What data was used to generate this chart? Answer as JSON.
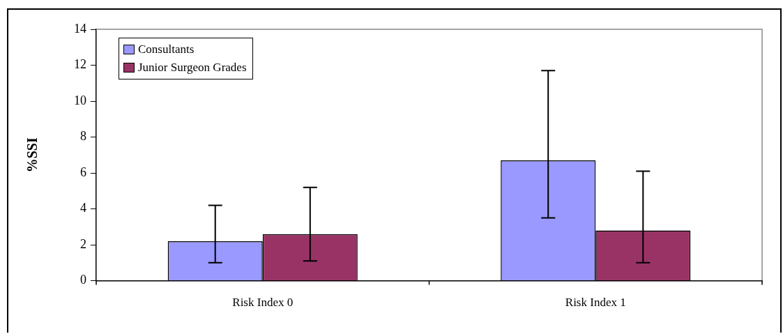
{
  "chart_data": {
    "type": "bar",
    "ylabel": "%SSI",
    "categories": [
      "Risk Index 0",
      "Risk Index 1"
    ],
    "series": [
      {
        "name": "Consultants",
        "color": "#9999ff",
        "values": [
          2.2,
          6.7
        ],
        "errors": [
          [
            1.0,
            4.2
          ],
          [
            3.5,
            11.7
          ]
        ]
      },
      {
        "name": "Junior Surgeon Grades",
        "color": "#993366",
        "values": [
          2.6,
          2.8
        ],
        "errors": [
          [
            1.1,
            5.2
          ],
          [
            1.0,
            6.1
          ]
        ]
      }
    ],
    "ylim": [
      0,
      14
    ],
    "yticks": [
      0,
      2,
      4,
      6,
      8,
      10,
      12,
      14
    ],
    "grid": false,
    "legend": "top left"
  }
}
